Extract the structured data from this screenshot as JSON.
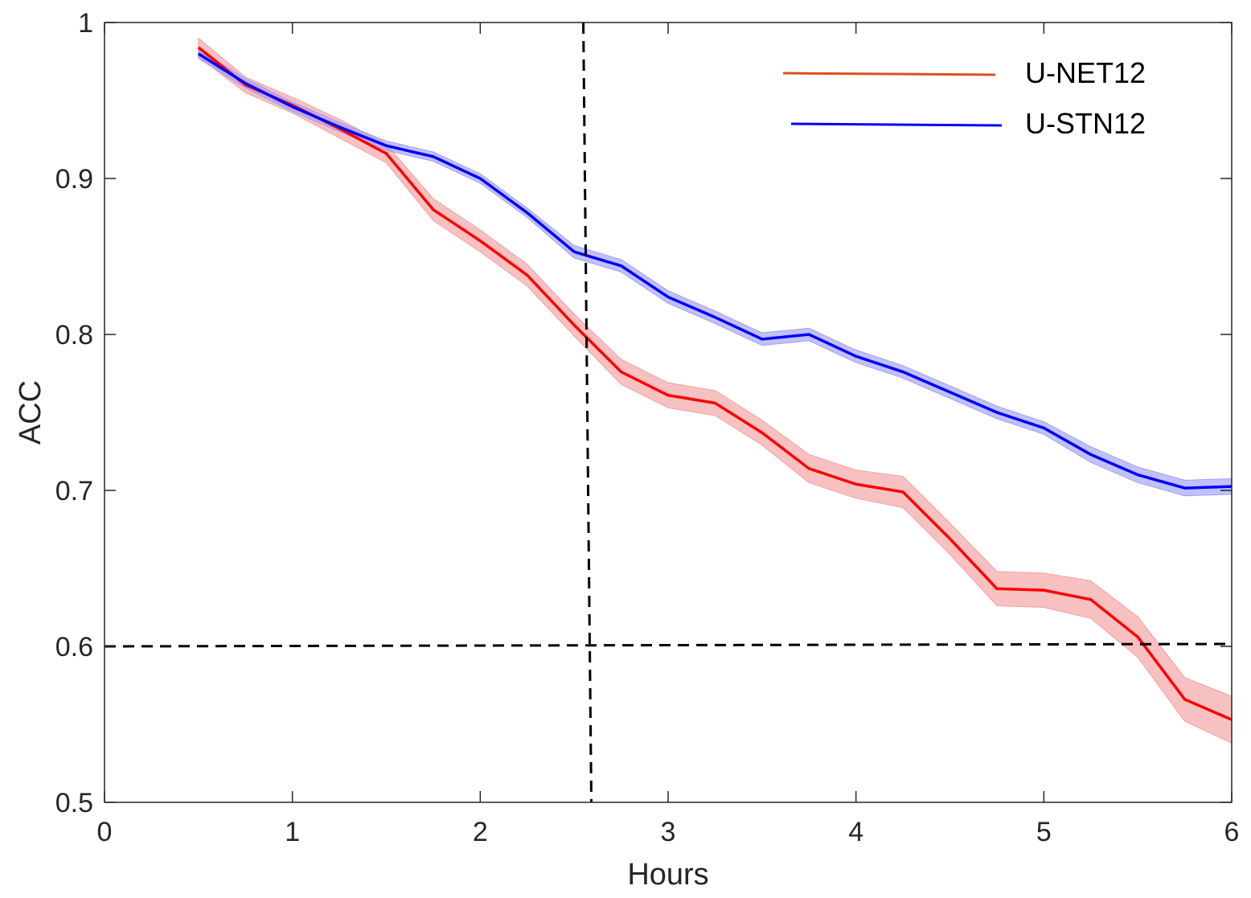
{
  "chart_data": {
    "type": "line",
    "title": "",
    "xlabel": "Hours",
    "ylabel": "ACC",
    "xlim": [
      0,
      6
    ],
    "ylim": [
      0.5,
      1
    ],
    "xticks": [
      0,
      1,
      2,
      3,
      4,
      5,
      6
    ],
    "xtick_labels": [
      "0",
      "1",
      "2",
      "3",
      "4",
      "5",
      "6"
    ],
    "yticks": [
      0.5,
      0.6,
      0.7,
      0.8,
      0.9,
      1
    ],
    "ytick_labels": [
      "0.5",
      "0.6",
      "0.7",
      "0.8",
      "0.9",
      "1"
    ],
    "grid": false,
    "legend_position": "top-right",
    "x": [
      0.5,
      0.75,
      1.0,
      1.25,
      1.5,
      1.75,
      2.0,
      2.25,
      2.5,
      2.75,
      3.0,
      3.25,
      3.5,
      3.75,
      4.0,
      4.25,
      4.5,
      4.75,
      5.0,
      5.25,
      5.5,
      5.75,
      6.0
    ],
    "series": [
      {
        "name": "U-NET12",
        "color": "#ff0000",
        "legend_color": "#d95319",
        "band_color": "#f4a0a0",
        "values": [
          0.984,
          0.96,
          0.947,
          0.932,
          0.916,
          0.88,
          0.86,
          0.838,
          0.806,
          0.776,
          0.761,
          0.756,
          0.737,
          0.714,
          0.704,
          0.699,
          0.669,
          0.637,
          0.636,
          0.63,
          0.606,
          0.566,
          0.553
        ],
        "error": [
          0.006,
          0.005,
          0.005,
          0.006,
          0.006,
          0.007,
          0.007,
          0.007,
          0.007,
          0.008,
          0.008,
          0.008,
          0.008,
          0.009,
          0.009,
          0.01,
          0.01,
          0.011,
          0.011,
          0.012,
          0.013,
          0.014,
          0.015
        ]
      },
      {
        "name": "U-STN12",
        "color": "#0000ff",
        "legend_color": "#0000ff",
        "band_color": "#a0a0f4",
        "values": [
          0.98,
          0.961,
          0.946,
          0.933,
          0.921,
          0.914,
          0.9,
          0.878,
          0.853,
          0.844,
          0.824,
          0.811,
          0.797,
          0.8,
          0.786,
          0.776,
          0.763,
          0.75,
          0.74,
          0.723,
          0.71,
          0.7015,
          0.7025
        ],
        "error": [
          0.003,
          0.003,
          0.003,
          0.003,
          0.003,
          0.003,
          0.003,
          0.003,
          0.004,
          0.004,
          0.004,
          0.004,
          0.004,
          0.004,
          0.004,
          0.004,
          0.004,
          0.004,
          0.004,
          0.005,
          0.005,
          0.005,
          0.005
        ]
      }
    ],
    "reference_lines": [
      {
        "orientation": "vertical",
        "x": 2.57,
        "style": "dashed",
        "color": "#000000"
      },
      {
        "orientation": "horizontal",
        "y": 0.6,
        "style": "dashed",
        "color": "#000000"
      }
    ]
  }
}
